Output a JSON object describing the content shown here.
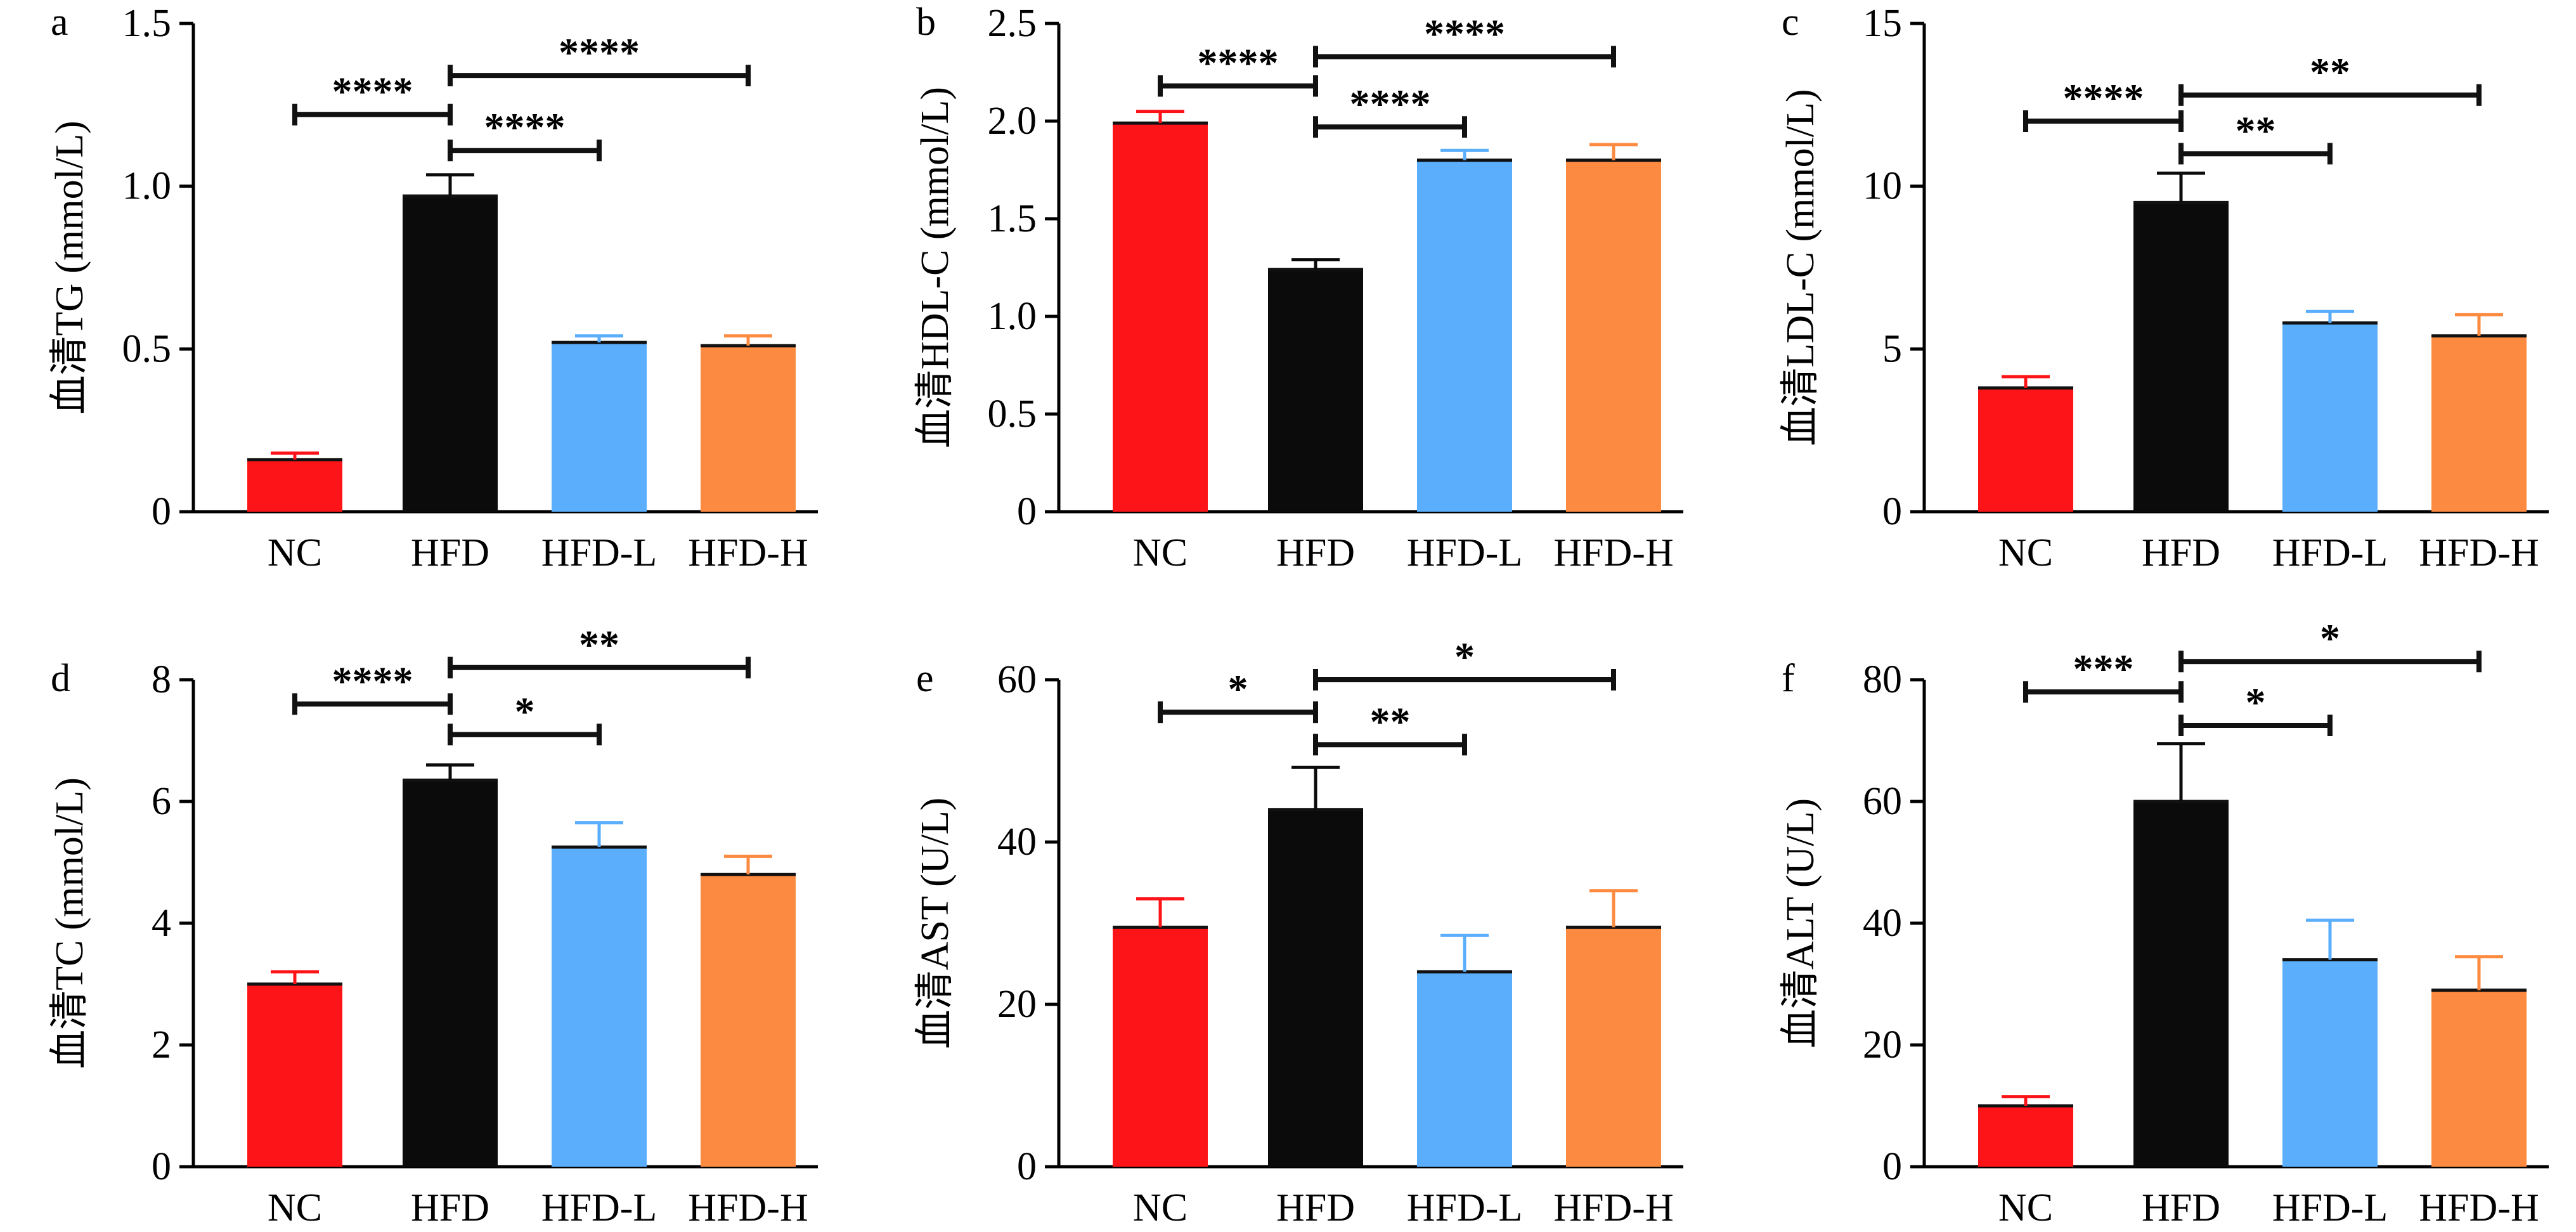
{
  "colors": {
    "NC": "#fd1418",
    "HFD": "#0b0b0b",
    "HFD-L": "#5aaefc",
    "HFD-H": "#fd8a41",
    "axis": "#000000"
  },
  "chart_data": [
    {
      "panel_label": "a",
      "type": "bar",
      "categories": [
        "NC",
        "HFD",
        "HFD-L",
        "HFD-H"
      ],
      "values": [
        0.16,
        0.97,
        0.52,
        0.51
      ],
      "errors": [
        0.02,
        0.065,
        0.02,
        0.03
      ],
      "ylabel": "血清TG (mmol/L)",
      "ylim": [
        0,
        1.5
      ],
      "yticks": [
        0,
        0.5,
        1.0,
        1.5
      ],
      "ytick_labels": [
        "0",
        "0.5",
        "1.0",
        "1.5"
      ],
      "significance": [
        {
          "from": 0,
          "to": 1,
          "label": "****",
          "y": 1.22
        },
        {
          "from": 1,
          "to": 3,
          "label": "****",
          "y": 1.34
        },
        {
          "from": 1,
          "to": 2,
          "label": "****",
          "y": 1.11
        }
      ]
    },
    {
      "panel_label": "b",
      "type": "bar",
      "categories": [
        "NC",
        "HFD",
        "HFD-L",
        "HFD-H"
      ],
      "values": [
        1.99,
        1.24,
        1.8,
        1.8
      ],
      "errors": [
        0.06,
        0.05,
        0.05,
        0.08
      ],
      "ylabel": "血清HDL-C (mmol/L)",
      "ylim": [
        0,
        2.5
      ],
      "yticks": [
        0,
        0.5,
        1.0,
        1.5,
        2.0,
        2.5
      ],
      "ytick_labels": [
        "0",
        "0.5",
        "1.0",
        "1.5",
        "2.0",
        "2.5"
      ],
      "significance": [
        {
          "from": 0,
          "to": 1,
          "label": "****",
          "y": 2.18
        },
        {
          "from": 1,
          "to": 3,
          "label": "****",
          "y": 2.33
        },
        {
          "from": 1,
          "to": 2,
          "label": "****",
          "y": 1.97
        }
      ]
    },
    {
      "panel_label": "c",
      "type": "bar",
      "categories": [
        "NC",
        "HFD",
        "HFD-L",
        "HFD-H"
      ],
      "values": [
        3.8,
        9.5,
        5.8,
        5.4
      ],
      "errors": [
        0.35,
        0.9,
        0.35,
        0.65
      ],
      "ylabel": "血清LDL-C (mmol/L)",
      "ylim": [
        0,
        15
      ],
      "yticks": [
        0,
        5,
        10,
        15
      ],
      "ytick_labels": [
        "0",
        "5",
        "10",
        "15"
      ],
      "significance": [
        {
          "from": 0,
          "to": 1,
          "label": "****",
          "y": 12.0
        },
        {
          "from": 1,
          "to": 3,
          "label": "**",
          "y": 12.8
        },
        {
          "from": 1,
          "to": 2,
          "label": "**",
          "y": 11.0
        }
      ]
    },
    {
      "panel_label": "d",
      "type": "bar",
      "categories": [
        "NC",
        "HFD",
        "HFD-L",
        "HFD-H"
      ],
      "values": [
        3.0,
        6.35,
        5.25,
        4.8
      ],
      "errors": [
        0.2,
        0.25,
        0.4,
        0.3
      ],
      "ylabel": "血清TC (mmol/L)",
      "ylim": [
        0,
        8
      ],
      "yticks": [
        0,
        2,
        4,
        6,
        8
      ],
      "ytick_labels": [
        "0",
        "2",
        "4",
        "6",
        "8"
      ],
      "significance": [
        {
          "from": 0,
          "to": 1,
          "label": "****",
          "y": 7.6
        },
        {
          "from": 1,
          "to": 3,
          "label": "**",
          "y": 8.2
        },
        {
          "from": 1,
          "to": 2,
          "label": "*",
          "y": 7.1
        }
      ]
    },
    {
      "panel_label": "e",
      "type": "bar",
      "categories": [
        "NC",
        "HFD",
        "HFD-L",
        "HFD-H"
      ],
      "values": [
        29.5,
        44.0,
        24.0,
        29.5
      ],
      "errors": [
        3.5,
        5.2,
        4.5,
        4.5
      ],
      "ylabel": "血清AST (U/L)",
      "ylim": [
        0,
        60
      ],
      "yticks": [
        0,
        20,
        40,
        60
      ],
      "ytick_labels": [
        "0",
        "20",
        "40",
        "60"
      ],
      "significance": [
        {
          "from": 0,
          "to": 1,
          "label": "*",
          "y": 56.0
        },
        {
          "from": 1,
          "to": 3,
          "label": "*",
          "y": 60.0
        },
        {
          "from": 1,
          "to": 2,
          "label": "**",
          "y": 52.0
        }
      ]
    },
    {
      "panel_label": "f",
      "type": "bar",
      "categories": [
        "NC",
        "HFD",
        "HFD-L",
        "HFD-H"
      ],
      "values": [
        10.0,
        60.0,
        34.0,
        29.0
      ],
      "errors": [
        1.5,
        9.5,
        6.5,
        5.5
      ],
      "ylabel": "血清ALT (U/L)",
      "ylim": [
        0,
        80
      ],
      "yticks": [
        0,
        20,
        40,
        60,
        80
      ],
      "ytick_labels": [
        "0",
        "20",
        "40",
        "60",
        "80"
      ],
      "significance": [
        {
          "from": 0,
          "to": 1,
          "label": "***",
          "y": 78.0
        },
        {
          "from": 1,
          "to": 3,
          "label": "*",
          "y": 83.0
        },
        {
          "from": 1,
          "to": 2,
          "label": "*",
          "y": 72.5
        }
      ]
    }
  ]
}
